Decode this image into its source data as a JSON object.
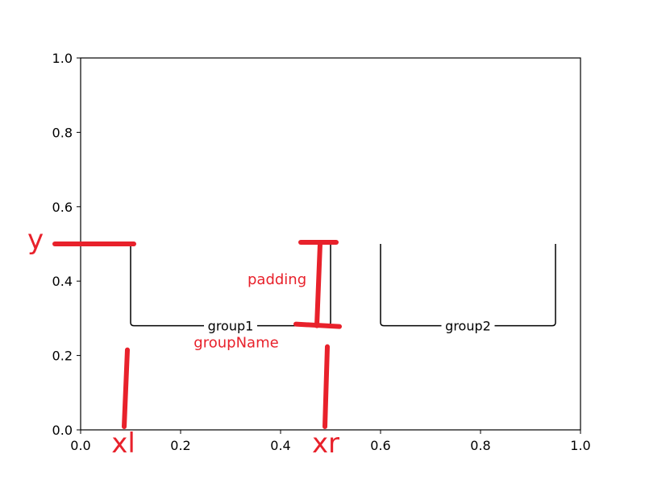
{
  "chart_data": {
    "type": "annotated-diagram",
    "xlim": [
      0.0,
      1.0
    ],
    "ylim": [
      0.0,
      1.0
    ],
    "xticks": [
      "0.0",
      "0.2",
      "0.4",
      "0.6",
      "0.8",
      "1.0"
    ],
    "yticks": [
      "0.0",
      "0.2",
      "0.4",
      "0.6",
      "0.8",
      "1.0"
    ],
    "grid": false,
    "brackets": [
      {
        "label": "group1",
        "xl": 0.1,
        "xr": 0.5,
        "y": 0.5,
        "bottom": 0.28
      },
      {
        "label": "group2",
        "xl": 0.6,
        "xr": 0.95,
        "y": 0.5,
        "bottom": 0.28
      }
    ],
    "annotations": {
      "y": "y",
      "padding": "padding",
      "groupName": "groupName",
      "xl": "xl",
      "xr": "xr"
    },
    "annotation_color": "#e8212b"
  }
}
